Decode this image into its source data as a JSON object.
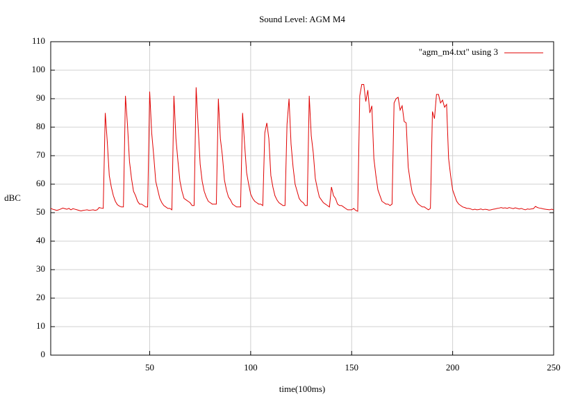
{
  "chart_data": {
    "type": "line",
    "title": "Sound Level: AGM M4",
    "xlabel": "time(100ms)",
    "ylabel": "dBC",
    "x": [
      1,
      2,
      3,
      4,
      5,
      6,
      7,
      8,
      9,
      10,
      11,
      12,
      13,
      14,
      15,
      16,
      17,
      18,
      19,
      20,
      21,
      22,
      23,
      24,
      25,
      26,
      27,
      28,
      29,
      30,
      31,
      32,
      33,
      34,
      35,
      36,
      37,
      38,
      39,
      40,
      41,
      42,
      43,
      44,
      45,
      46,
      47,
      48,
      49,
      50,
      51,
      52,
      53,
      54,
      55,
      56,
      57,
      58,
      59,
      60,
      61,
      62,
      63,
      64,
      65,
      66,
      67,
      68,
      69,
      70,
      71,
      72,
      73,
      74,
      75,
      76,
      77,
      78,
      79,
      80,
      81,
      82,
      83,
      84,
      85,
      86,
      87,
      88,
      89,
      90,
      91,
      92,
      93,
      94,
      95,
      96,
      97,
      98,
      99,
      100,
      101,
      102,
      103,
      104,
      105,
      106,
      107,
      108,
      109,
      110,
      111,
      112,
      113,
      114,
      115,
      116,
      117,
      118,
      119,
      120,
      121,
      122,
      123,
      124,
      125,
      126,
      127,
      128,
      129,
      130,
      131,
      132,
      133,
      134,
      135,
      136,
      137,
      138,
      139,
      140,
      141,
      142,
      143,
      144,
      145,
      146,
      147,
      148,
      149,
      150,
      151,
      152,
      153,
      154,
      155,
      156,
      157,
      158,
      159,
      160,
      161,
      162,
      163,
      164,
      165,
      166,
      167,
      168,
      169,
      170,
      171,
      172,
      173,
      174,
      175,
      176,
      177,
      178,
      179,
      180,
      181,
      182,
      183,
      184,
      185,
      186,
      187,
      188,
      189,
      190,
      191,
      192,
      193,
      194,
      195,
      196,
      197,
      198,
      199,
      200,
      201,
      202,
      203,
      204,
      205,
      206,
      207,
      208,
      209,
      210,
      211,
      212,
      213,
      214,
      215,
      216,
      217,
      218,
      219,
      220,
      221,
      222,
      223,
      224,
      225,
      226,
      227,
      228,
      229,
      230,
      231,
      232,
      233,
      234,
      235,
      236,
      237,
      238,
      239,
      240,
      241,
      242,
      243,
      244,
      245,
      246,
      247,
      248,
      249,
      250
    ],
    "series": [
      {
        "name": "\"agm_m4.txt\" using 3",
        "color": "#e00000",
        "values": [
          51.5,
          51.2,
          51,
          50.8,
          51,
          51.3,
          51.6,
          51.4,
          51.2,
          51.5,
          51,
          51.4,
          51.2,
          51,
          50.8,
          50.6,
          50.8,
          50.9,
          51,
          50.8,
          50.9,
          51,
          50.8,
          51,
          51.8,
          51.6,
          51.5,
          85,
          75,
          63,
          59,
          56,
          54,
          52.8,
          52.3,
          52,
          52,
          91,
          81,
          68,
          62,
          57.5,
          56,
          54,
          53,
          53,
          52.5,
          52,
          52,
          92.5,
          78,
          70,
          61,
          58,
          55,
          53.5,
          52.5,
          52,
          51.5,
          51.5,
          51,
          91,
          76,
          68,
          61,
          57.5,
          55,
          54.5,
          54,
          53.5,
          52.5,
          52.5,
          94,
          80,
          67,
          61,
          57.5,
          55.5,
          54,
          53.5,
          53,
          53,
          53,
          90,
          76,
          70,
          61.5,
          58,
          55.5,
          54.5,
          53,
          52.5,
          52,
          52,
          52,
          85,
          74,
          64,
          60,
          56.5,
          55,
          54,
          53.5,
          53,
          53,
          52.5,
          78,
          81.5,
          76,
          63,
          59,
          56,
          54.5,
          53.5,
          53,
          52.5,
          52.5,
          81,
          90,
          74,
          66,
          60,
          57.5,
          55,
          54,
          53.5,
          52.5,
          52.5,
          91,
          77,
          71,
          62,
          58.5,
          55.5,
          54.5,
          53.5,
          53,
          52.5,
          52,
          59,
          56,
          55,
          53,
          52.5,
          52.5,
          52,
          51.5,
          51,
          51,
          51,
          51.5,
          50.8,
          50.5,
          91,
          95,
          95,
          89,
          93,
          85,
          87.5,
          69,
          63,
          58,
          56,
          54,
          53.5,
          53,
          53,
          52.5,
          53,
          88.5,
          90,
          90.5,
          86,
          87.5,
          82,
          81.5,
          66,
          61,
          57,
          55.5,
          54,
          53,
          52.5,
          52,
          52,
          51.5,
          51,
          51.5,
          85.5,
          83,
          91.5,
          91.5,
          88.5,
          89.5,
          87,
          88,
          69,
          63,
          58,
          56,
          54,
          53,
          52.5,
          52,
          51.8,
          51.5,
          51.5,
          51.3,
          51,
          51.2,
          51,
          51.1,
          51.3,
          51,
          51.2,
          51.1,
          50.9,
          51,
          51.2,
          51.3,
          51.5,
          51.6,
          51.8,
          51.6,
          51.7,
          51.5,
          51.8,
          51.6,
          51.4,
          51.7,
          51.5,
          51.3,
          51.5,
          51.2,
          51,
          51.3,
          51.2,
          51.3,
          51.4,
          52.2,
          51.8,
          51.6,
          51.5,
          51.3,
          51.2,
          51.1,
          51,
          51.2,
          51
        ]
      }
    ],
    "xlim": [
      1,
      250
    ],
    "xticks": [
      50,
      100,
      150,
      200,
      250
    ],
    "ylim": [
      0,
      110
    ],
    "yticks": [
      0,
      10,
      20,
      30,
      40,
      50,
      60,
      70,
      80,
      90,
      100,
      110
    ],
    "grid": true,
    "legend": "top-right"
  }
}
